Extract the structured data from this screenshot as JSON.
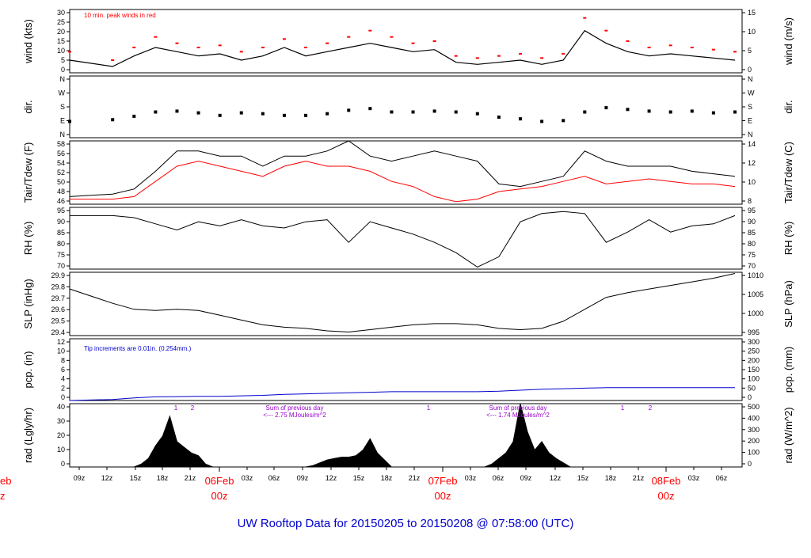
{
  "title": "UW Rooftop Data for 20150205  to  20150208 @ 07:58:00  (UTC)",
  "colors": {
    "axis": "#000000",
    "red": "#ff0000",
    "blue": "#0000cc",
    "purple": "#9900cc",
    "title": "#0000cc"
  },
  "x_axis": {
    "hour_ticks": [
      "09z",
      "12z",
      "15z",
      "18z",
      "21z",
      "03z",
      "06z",
      "09z",
      "12z",
      "15z",
      "18z",
      "21z",
      "03z",
      "06z",
      "09z",
      "12z",
      "15z",
      "18z",
      "21z",
      "03z",
      "06z"
    ],
    "days": [
      {
        "date": "06Feb",
        "hour": "00z"
      },
      {
        "date": "07Feb",
        "hour": "00z"
      },
      {
        "date": "08Feb",
        "hour": "00z"
      }
    ],
    "clipped_left_date": "eb",
    "clipped_left_hour": "z"
  },
  "chart_data": [
    {
      "type": "line",
      "name": "wind",
      "ylabel_left": "wind (kts)",
      "ylabel_right": "wind (m/s)",
      "left_ticks": [
        "30",
        "25",
        "20",
        "15",
        "10",
        "5",
        "0"
      ],
      "right_ticks": [
        "15",
        "10",
        "5",
        "0"
      ],
      "ylim": [
        0,
        30
      ],
      "annotation": "10 min. peak winds in red",
      "hours": [
        0,
        6,
        9,
        12,
        15,
        18,
        21,
        24,
        27,
        30,
        33,
        36,
        39,
        42,
        45,
        48,
        51,
        54,
        57,
        60,
        63,
        66,
        69,
        72,
        75,
        78,
        81,
        84,
        87,
        90,
        93
      ],
      "mean_kts": [
        6,
        3,
        8,
        12,
        10,
        8,
        9,
        6,
        8,
        12,
        8,
        10,
        12,
        14,
        12,
        10,
        11,
        5,
        4,
        5,
        6,
        4,
        6,
        20,
        14,
        10,
        8,
        9,
        8,
        7,
        6
      ],
      "peak_kts": [
        10,
        6,
        12,
        17,
        14,
        12,
        13,
        10,
        12,
        16,
        12,
        14,
        17,
        20,
        17,
        14,
        15,
        8,
        7,
        8,
        9,
        7,
        9,
        26,
        20,
        15,
        12,
        13,
        12,
        11,
        10
      ]
    },
    {
      "type": "scatter",
      "name": "direction",
      "ylabel_left": "dir.",
      "ylabel_right": "dir.",
      "left_ticks": [
        "N",
        "W",
        "S",
        "E",
        "N"
      ],
      "right_ticks": [
        "N",
        "W",
        "S",
        "E",
        "N"
      ],
      "ylim": [
        0,
        360
      ],
      "hours": [
        0,
        6,
        9,
        12,
        15,
        18,
        21,
        24,
        27,
        30,
        33,
        36,
        39,
        42,
        45,
        48,
        51,
        54,
        57,
        60,
        63,
        66,
        69,
        72,
        75,
        78,
        81,
        84,
        87,
        90,
        93
      ],
      "degrees": [
        95,
        105,
        125,
        150,
        155,
        145,
        130,
        145,
        140,
        130,
        130,
        140,
        160,
        170,
        150,
        150,
        155,
        150,
        140,
        120,
        110,
        95,
        100,
        150,
        175,
        165,
        155,
        150,
        155,
        145,
        150
      ]
    },
    {
      "type": "line",
      "name": "temperature",
      "ylabel_left": "Tair/Tdew (F)",
      "ylabel_right": "Tair/Tdew (C)",
      "left_ticks": [
        "58",
        "56",
        "54",
        "52",
        "50",
        "48",
        "46"
      ],
      "right_ticks": [
        "14",
        "12",
        "10",
        "8"
      ],
      "ylim": [
        45.5,
        58
      ],
      "series": [
        {
          "name": "Tair",
          "color": "black",
          "hours": [
            0,
            6,
            9,
            12,
            15,
            18,
            21,
            24,
            27,
            30,
            33,
            36,
            39,
            42,
            45,
            48,
            51,
            54,
            57,
            60,
            63,
            66,
            69,
            72,
            75,
            78,
            81,
            84,
            87,
            90,
            93
          ],
          "values": [
            47,
            47.5,
            48.5,
            52,
            56,
            56,
            55,
            55,
            53,
            55,
            55,
            56,
            58,
            55,
            54,
            55,
            56,
            55,
            54,
            49.5,
            49,
            50,
            51,
            56,
            54,
            53,
            53,
            53,
            52,
            51.5,
            51
          ]
        },
        {
          "name": "Tdew",
          "color": "red",
          "hours": [
            0,
            6,
            9,
            12,
            15,
            18,
            21,
            24,
            27,
            30,
            33,
            36,
            39,
            42,
            45,
            48,
            51,
            54,
            57,
            60,
            63,
            66,
            69,
            72,
            75,
            78,
            81,
            84,
            87,
            90,
            93
          ],
          "values": [
            46.5,
            46.5,
            47,
            50,
            53,
            54,
            53,
            52,
            51,
            53,
            54,
            53,
            53,
            52,
            50,
            49,
            47,
            46,
            46.5,
            48,
            48.5,
            49,
            50,
            51,
            49.5,
            50,
            50.5,
            50,
            49.5,
            49.5,
            49
          ]
        }
      ]
    },
    {
      "type": "line",
      "name": "rh",
      "ylabel_left": "RH (%)",
      "ylabel_right": "RH (%)",
      "left_ticks": [
        "95",
        "90",
        "85",
        "80",
        "75",
        "70"
      ],
      "right_ticks": [
        "95",
        "90",
        "85",
        "80",
        "75",
        "70"
      ],
      "ylim": [
        67,
        97
      ],
      "hours": [
        0,
        6,
        9,
        12,
        15,
        18,
        21,
        24,
        27,
        30,
        33,
        36,
        39,
        42,
        45,
        48,
        51,
        54,
        57,
        60,
        63,
        66,
        69,
        72,
        75,
        78,
        81,
        84,
        87,
        90,
        93
      ],
      "values": [
        93,
        93,
        92,
        89,
        86,
        90,
        88,
        91,
        88,
        87,
        90,
        91,
        80,
        90,
        87,
        84,
        80,
        75,
        68,
        73,
        90,
        94,
        95,
        94,
        80,
        85,
        91,
        85,
        88,
        89,
        93
      ]
    },
    {
      "type": "line",
      "name": "slp",
      "ylabel_left": "SLP (inHg)",
      "ylabel_right": "SLP (hPa)",
      "left_ticks": [
        "29.9",
        "29.8",
        "29.7",
        "29.6",
        "29.5",
        "29.4"
      ],
      "right_ticks": [
        "1010",
        "1005",
        "1000",
        "995"
      ],
      "ylim": [
        29.4,
        29.93
      ],
      "hours": [
        0,
        6,
        9,
        12,
        15,
        18,
        21,
        24,
        27,
        30,
        33,
        36,
        39,
        42,
        45,
        48,
        51,
        54,
        57,
        60,
        63,
        66,
        69,
        72,
        75,
        78,
        81,
        84,
        87,
        90,
        93
      ],
      "values": [
        29.79,
        29.67,
        29.62,
        29.61,
        29.62,
        29.61,
        29.57,
        29.53,
        29.49,
        29.47,
        29.46,
        29.44,
        29.43,
        29.45,
        29.47,
        29.49,
        29.5,
        29.5,
        29.49,
        29.46,
        29.45,
        29.46,
        29.52,
        29.62,
        29.72,
        29.76,
        29.79,
        29.82,
        29.85,
        29.88,
        29.92
      ]
    },
    {
      "type": "line",
      "name": "precipitation",
      "ylabel_left": "pcp. (in)",
      "ylabel_right": "pcp. (mm)",
      "left_ticks": [
        "12",
        "10",
        "8",
        "6",
        "4",
        "2",
        "0"
      ],
      "right_ticks": [
        "300",
        "250",
        "200",
        "150",
        "100",
        "50",
        "0"
      ],
      "ylim": [
        0,
        12
      ],
      "annotation": "Tip increments are 0.01in. (0.254mm.)",
      "hours": [
        0,
        6,
        9,
        12,
        15,
        18,
        21,
        24,
        27,
        30,
        33,
        36,
        39,
        42,
        45,
        48,
        51,
        54,
        57,
        60,
        63,
        66,
        69,
        72,
        75,
        78,
        81,
        84,
        87,
        90,
        93
      ],
      "values": [
        0,
        0.2,
        0.5,
        0.7,
        0.75,
        0.8,
        0.8,
        0.9,
        1,
        1.2,
        1.3,
        1.4,
        1.5,
        1.6,
        1.7,
        1.7,
        1.7,
        1.7,
        1.7,
        1.8,
        2,
        2.2,
        2.3,
        2.4,
        2.5,
        2.5,
        2.5,
        2.5,
        2.5,
        2.5,
        2.5
      ]
    },
    {
      "type": "area",
      "name": "radiation",
      "ylabel_left": "rad (Lgly/hr)",
      "ylabel_right": "rad (W/m^2)",
      "left_ticks": [
        "40",
        "30",
        "20",
        "10",
        "0"
      ],
      "right_ticks": [
        "500",
        "400",
        "300",
        "200",
        "100",
        "0"
      ],
      "ylim": [
        0,
        45
      ],
      "markers": [
        "1",
        "2",
        "1",
        "1",
        "2"
      ],
      "annotations": [
        {
          "line1": "Sum of previous day",
          "line2": "<--- 2.75 MJoules/m^2"
        },
        {
          "line1": "Sum of previous day",
          "line2": "<--- 1.74 MJoules/m^2"
        }
      ],
      "hours": [
        0,
        9,
        10,
        11,
        12,
        13,
        14,
        15,
        16,
        17,
        18,
        19,
        20,
        33,
        34,
        35,
        36,
        37,
        38,
        39,
        40,
        41,
        42,
        43,
        44,
        45,
        57,
        58,
        59,
        60,
        61,
        62,
        63,
        64,
        65,
        66,
        67,
        68,
        69,
        70,
        93
      ],
      "values": [
        0,
        0,
        2,
        6,
        15,
        22,
        36,
        18,
        14,
        10,
        8,
        2,
        0,
        0,
        1,
        3,
        5,
        6,
        7,
        7,
        8,
        12,
        20,
        10,
        5,
        0,
        0,
        0,
        2,
        6,
        10,
        18,
        45,
        25,
        12,
        18,
        10,
        6,
        3,
        0,
        0
      ]
    }
  ]
}
